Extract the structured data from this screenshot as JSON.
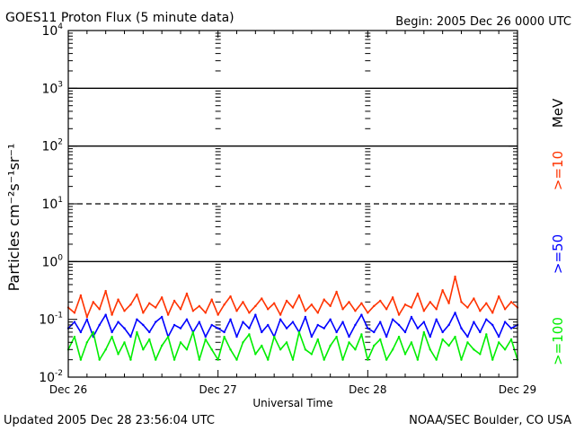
{
  "chart_data": {
    "type": "line",
    "title": "GOES11 Proton Flux (5 minute data)",
    "begin_label": "Begin: 2005 Dec 26 0000 UTC",
    "xlabel": "Universal Time",
    "ylabel": "Particles cm⁻²s⁻¹sr⁻¹",
    "y_scale": "log",
    "ylim": [
      0.01,
      10000
    ],
    "y_ticks": [
      {
        "value": 0.01,
        "base": "10",
        "exp": "-2"
      },
      {
        "value": 0.1,
        "base": "10",
        "exp": "-1"
      },
      {
        "value": 1,
        "base": "10",
        "exp": "0"
      },
      {
        "value": 10,
        "base": "10",
        "exp": "1"
      },
      {
        "value": 100,
        "base": "10",
        "exp": "2"
      },
      {
        "value": 1000,
        "base": "10",
        "exp": "3"
      },
      {
        "value": 10000,
        "base": "10",
        "exp": "4"
      }
    ],
    "x_unit": "hours since 2005 Dec 26 0000 UTC",
    "xlim": [
      0,
      72
    ],
    "x_ticks": [
      {
        "value": 0,
        "label": "Dec 26"
      },
      {
        "value": 24,
        "label": "Dec 27"
      },
      {
        "value": 48,
        "label": "Dec 28"
      },
      {
        "value": 72,
        "label": "Dec 29"
      }
    ],
    "threshold_lines": [
      {
        "value": 1,
        "style": "solid"
      },
      {
        "value": 10,
        "style": "dashed"
      },
      {
        "value": 100,
        "style": "solid"
      },
      {
        "value": 1000,
        "style": "solid"
      }
    ],
    "legend_placement": "right",
    "legend_unit": "MeV",
    "series": [
      {
        "name": ">=10",
        "color": "#ff3300",
        "x": [
          0,
          1,
          2,
          3,
          4,
          5,
          6,
          7,
          8,
          9,
          10,
          11,
          12,
          13,
          14,
          15,
          16,
          17,
          18,
          19,
          20,
          21,
          22,
          23,
          24,
          25,
          26,
          27,
          28,
          29,
          30,
          31,
          32,
          33,
          34,
          35,
          36,
          37,
          38,
          39,
          40,
          41,
          42,
          43,
          44,
          45,
          46,
          47,
          48,
          49,
          50,
          51,
          52,
          53,
          54,
          55,
          56,
          57,
          58,
          59,
          60,
          61,
          62,
          63,
          64,
          65,
          66,
          67,
          68,
          69,
          70,
          71,
          72
        ],
        "values": [
          0.16,
          0.13,
          0.26,
          0.11,
          0.2,
          0.15,
          0.31,
          0.12,
          0.22,
          0.14,
          0.18,
          0.27,
          0.13,
          0.19,
          0.16,
          0.24,
          0.12,
          0.21,
          0.15,
          0.28,
          0.14,
          0.17,
          0.13,
          0.22,
          0.12,
          0.18,
          0.25,
          0.14,
          0.2,
          0.13,
          0.17,
          0.23,
          0.15,
          0.19,
          0.12,
          0.21,
          0.16,
          0.26,
          0.14,
          0.18,
          0.13,
          0.22,
          0.17,
          0.3,
          0.15,
          0.2,
          0.14,
          0.19,
          0.13,
          0.17,
          0.21,
          0.15,
          0.24,
          0.12,
          0.18,
          0.16,
          0.28,
          0.14,
          0.2,
          0.15,
          0.32,
          0.19,
          0.55,
          0.2,
          0.16,
          0.23,
          0.14,
          0.19,
          0.13,
          0.25,
          0.15,
          0.2,
          0.16
        ]
      },
      {
        "name": ">=50",
        "color": "#0000ff",
        "x": [
          0,
          1,
          2,
          3,
          4,
          5,
          6,
          7,
          8,
          9,
          10,
          11,
          12,
          13,
          14,
          15,
          16,
          17,
          18,
          19,
          20,
          21,
          22,
          23,
          24,
          25,
          26,
          27,
          28,
          29,
          30,
          31,
          32,
          33,
          34,
          35,
          36,
          37,
          38,
          39,
          40,
          41,
          42,
          43,
          44,
          45,
          46,
          47,
          48,
          49,
          50,
          51,
          52,
          53,
          54,
          55,
          56,
          57,
          58,
          59,
          60,
          61,
          62,
          63,
          64,
          65,
          66,
          67,
          68,
          69,
          70,
          71,
          72
        ],
        "values": [
          0.07,
          0.09,
          0.06,
          0.1,
          0.05,
          0.08,
          0.12,
          0.06,
          0.09,
          0.07,
          0.05,
          0.1,
          0.08,
          0.06,
          0.09,
          0.11,
          0.05,
          0.08,
          0.07,
          0.1,
          0.06,
          0.09,
          0.05,
          0.08,
          0.07,
          0.06,
          0.1,
          0.05,
          0.09,
          0.07,
          0.12,
          0.06,
          0.08,
          0.05,
          0.1,
          0.07,
          0.09,
          0.06,
          0.11,
          0.05,
          0.08,
          0.07,
          0.1,
          0.06,
          0.09,
          0.05,
          0.08,
          0.12,
          0.07,
          0.06,
          0.09,
          0.05,
          0.1,
          0.08,
          0.06,
          0.11,
          0.07,
          0.09,
          0.05,
          0.1,
          0.06,
          0.08,
          0.13,
          0.07,
          0.05,
          0.09,
          0.06,
          0.1,
          0.08,
          0.05,
          0.09,
          0.07,
          0.08
        ]
      },
      {
        "name": ">=100",
        "color": "#00ee00",
        "x": [
          0,
          1,
          2,
          3,
          4,
          5,
          6,
          7,
          8,
          9,
          10,
          11,
          12,
          13,
          14,
          15,
          16,
          17,
          18,
          19,
          20,
          21,
          22,
          23,
          24,
          25,
          26,
          27,
          28,
          29,
          30,
          31,
          32,
          33,
          34,
          35,
          36,
          37,
          38,
          39,
          40,
          41,
          42,
          43,
          44,
          45,
          46,
          47,
          48,
          49,
          50,
          51,
          52,
          53,
          54,
          55,
          56,
          57,
          58,
          59,
          60,
          61,
          62,
          63,
          64,
          65,
          66,
          67,
          68,
          69,
          70,
          71,
          72
        ],
        "values": [
          0.03,
          0.05,
          0.02,
          0.04,
          0.06,
          0.02,
          0.03,
          0.05,
          0.025,
          0.04,
          0.02,
          0.06,
          0.03,
          0.045,
          0.02,
          0.035,
          0.05,
          0.02,
          0.04,
          0.03,
          0.06,
          0.02,
          0.045,
          0.03,
          0.02,
          0.05,
          0.03,
          0.02,
          0.04,
          0.055,
          0.025,
          0.035,
          0.02,
          0.05,
          0.03,
          0.04,
          0.02,
          0.06,
          0.03,
          0.025,
          0.045,
          0.02,
          0.035,
          0.05,
          0.02,
          0.04,
          0.03,
          0.055,
          0.02,
          0.035,
          0.045,
          0.02,
          0.03,
          0.05,
          0.025,
          0.04,
          0.02,
          0.06,
          0.03,
          0.02,
          0.045,
          0.035,
          0.05,
          0.02,
          0.04,
          0.03,
          0.025,
          0.055,
          0.02,
          0.04,
          0.03,
          0.045,
          0.02
        ]
      }
    ]
  },
  "footer": {
    "updated": "Updated 2005 Dec 28 23:56:04 UTC",
    "credit": "NOAA/SEC Boulder, CO USA"
  }
}
